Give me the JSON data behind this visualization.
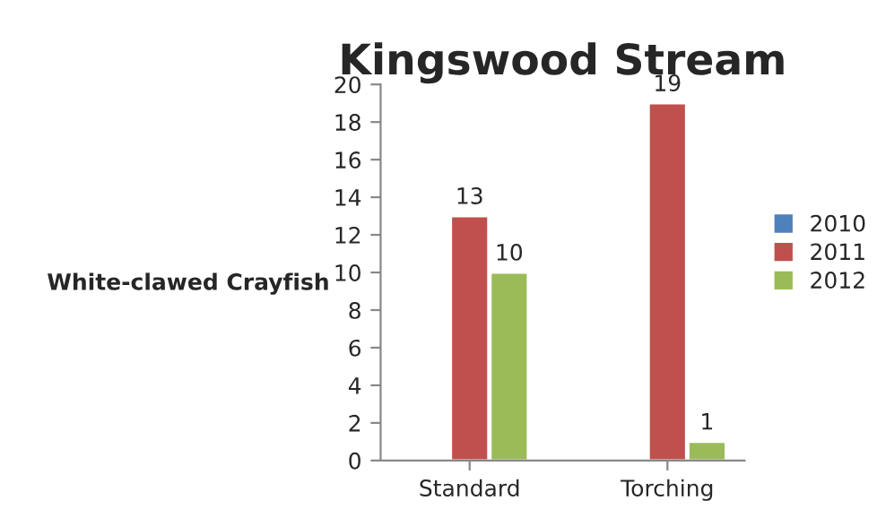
{
  "chart_data": {
    "type": "bar",
    "title": "Kingswood Stream",
    "ylabel": "White-clawed Crayfish",
    "categories": [
      "Standard",
      "Torching"
    ],
    "series": [
      {
        "name": "2010",
        "color": "#4f81bd",
        "values": [
          null,
          null
        ]
      },
      {
        "name": "2011",
        "color": "#c0504d",
        "values": [
          13,
          19
        ]
      },
      {
        "name": "2012",
        "color": "#9bbb59",
        "values": [
          10,
          1
        ]
      }
    ],
    "ylim": [
      0,
      20
    ],
    "yticks": [
      0,
      2,
      4,
      6,
      8,
      10,
      12,
      14,
      16,
      18,
      20
    ],
    "data_labels": true,
    "grid": false,
    "legend": "right"
  }
}
